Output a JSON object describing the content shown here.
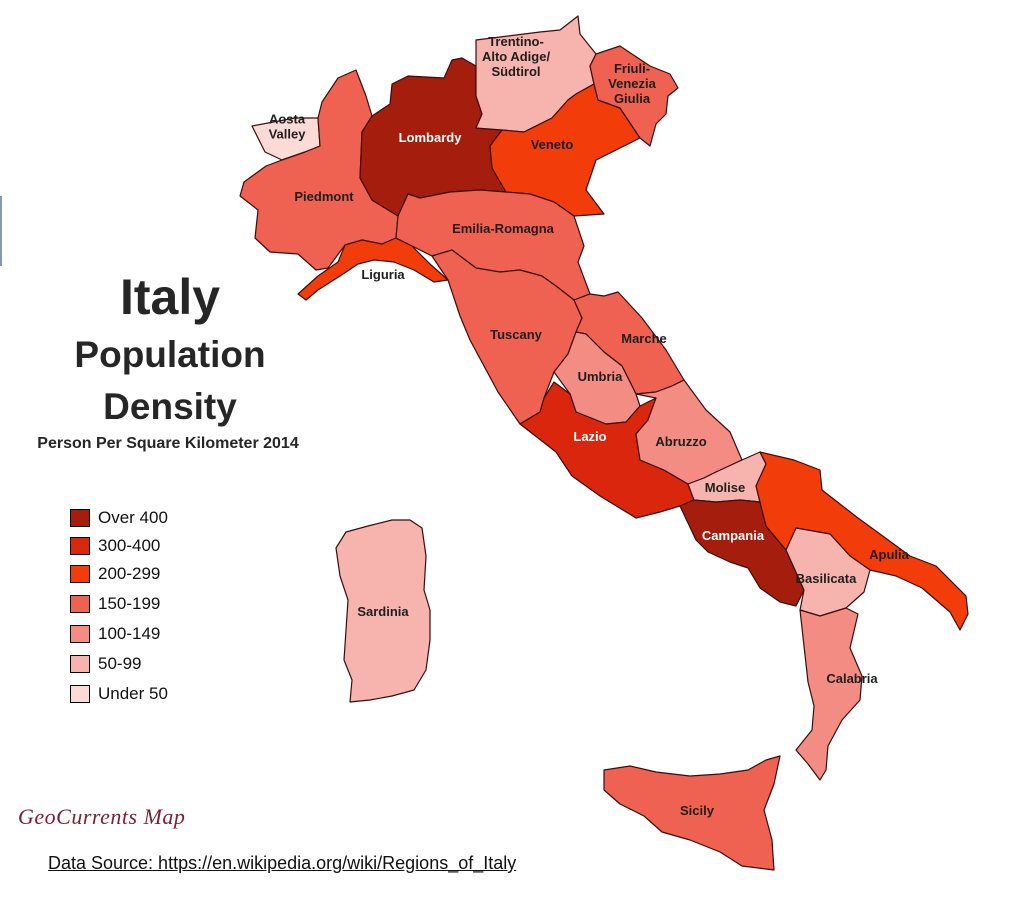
{
  "title": "Italy",
  "title_line2": "Population",
  "title_line3": "Density",
  "subtitle": "Person Per Square Kilometer 2014",
  "credit": "GeoCurrents Map",
  "source": "Data Source: https://en.wikipedia.org/wiki/Regions_of_Italy",
  "legend": [
    {
      "label": "Over 400",
      "color": "#a51d0c"
    },
    {
      "label": "300-400",
      "color": "#d9260d"
    },
    {
      "label": "200-299",
      "color": "#f23d0b"
    },
    {
      "label": "150-199",
      "color": "#ef6150"
    },
    {
      "label": "100-149",
      "color": "#f38d83"
    },
    {
      "label": "50-99",
      "color": "#f7b3ad"
    },
    {
      "label": "Under 50",
      "color": "#fcdad6"
    }
  ],
  "regions": [
    {
      "name": "Aosta Valley",
      "lines": [
        "Aosta",
        "Valley"
      ],
      "category": "Under 50"
    },
    {
      "name": "Piedmont",
      "lines": [
        "Piedmont"
      ],
      "category": "150-199"
    },
    {
      "name": "Lombardy",
      "lines": [
        "Lombardy"
      ],
      "category": "Over 400"
    },
    {
      "name": "Trentino-Alto Adige/Südtirol",
      "lines": [
        "Trentino-",
        "Alto Adige/",
        "Südtirol"
      ],
      "category": "50-99"
    },
    {
      "name": "Veneto",
      "lines": [
        "Veneto"
      ],
      "category": "200-299"
    },
    {
      "name": "Friuli-Venezia Giulia",
      "lines": [
        "Friuli-",
        "Venezia",
        "Giulia"
      ],
      "category": "150-199"
    },
    {
      "name": "Liguria",
      "lines": [
        "Liguria"
      ],
      "category": "200-299"
    },
    {
      "name": "Emilia-Romagna",
      "lines": [
        "Emilia-Romagna"
      ],
      "category": "150-199"
    },
    {
      "name": "Tuscany",
      "lines": [
        "Tuscany"
      ],
      "category": "150-199"
    },
    {
      "name": "Marche",
      "lines": [
        "Marche"
      ],
      "category": "150-199"
    },
    {
      "name": "Umbria",
      "lines": [
        "Umbria"
      ],
      "category": "100-149"
    },
    {
      "name": "Lazio",
      "lines": [
        "Lazio"
      ],
      "category": "300-400"
    },
    {
      "name": "Abruzzo",
      "lines": [
        "Abruzzo"
      ],
      "category": "100-149"
    },
    {
      "name": "Molise",
      "lines": [
        "Molise"
      ],
      "category": "50-99"
    },
    {
      "name": "Campania",
      "lines": [
        "Campania"
      ],
      "category": "Over 400"
    },
    {
      "name": "Apulia",
      "lines": [
        "Apulia"
      ],
      "category": "200-299"
    },
    {
      "name": "Basilicata",
      "lines": [
        "Basilicata"
      ],
      "category": "50-99"
    },
    {
      "name": "Calabria",
      "lines": [
        "Calabria"
      ],
      "category": "100-149"
    },
    {
      "name": "Sicily",
      "lines": [
        "Sicily"
      ],
      "category": "150-199"
    },
    {
      "name": "Sardinia",
      "lines": [
        "Sardinia"
      ],
      "category": "50-99"
    }
  ]
}
